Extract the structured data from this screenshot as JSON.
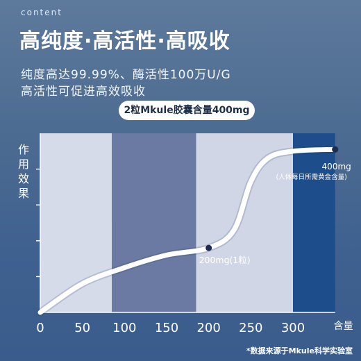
{
  "eyebrow": "content",
  "headline": "高纯度·高活性·高吸收",
  "description": {
    "line1": "纯度高达99.99%、酶活性100万U/G",
    "line2": "高活性可促进高效吸收"
  },
  "badge": "2粒Mkule胶囊含量400mg",
  "footnote": "*数据来源于Mkule科学实验室",
  "chart_data": {
    "type": "line",
    "ylabel": "作用效果",
    "xlabel": "含量",
    "x_ticks": [
      "0",
      "50",
      "100",
      "150",
      "200",
      "250",
      "300"
    ],
    "xlim": [
      0,
      300
    ],
    "ylim": [
      0,
      10
    ],
    "band_bounds": [
      0,
      85,
      185,
      300,
      350
    ],
    "series": [
      {
        "x": [
          0,
          50,
          100,
          150,
          200,
          230,
          250,
          270,
          300,
          350
        ],
        "y": [
          0,
          1.6,
          2.5,
          3.2,
          3.6,
          4.6,
          7.3,
          8.6,
          9.0,
          9.1
        ]
      }
    ],
    "annotations": [
      {
        "x": 200,
        "y": 3.6,
        "label": "200mg(1粒)"
      },
      {
        "x": 350,
        "y": 9.1,
        "label": "400mg",
        "sublabel": "(人体每日所需黄金含量)"
      }
    ],
    "colors": {
      "curve": "#ffffff",
      "marker": "#1e2c52",
      "bands": [
        "#d6dbea",
        "#6a7aa2",
        "#d1d6e6",
        "#1d4d8b"
      ]
    }
  }
}
